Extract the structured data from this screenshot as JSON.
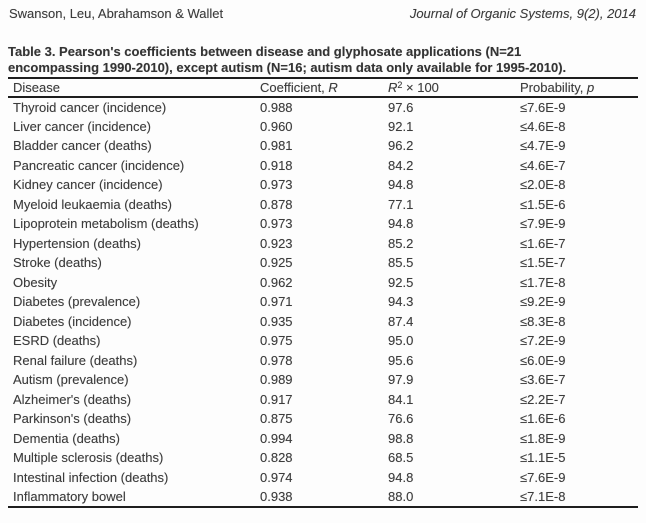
{
  "page": {
    "running_head_left": "Swanson, Leu, Abrahamson & Wallet",
    "running_head_right": "Journal of Organic Systems, 9(2), 2014"
  },
  "table": {
    "caption_line1": "Table 3. Pearson's coefficients between disease and glyphosate applications (N=21",
    "caption_line2": "encompassing 1990-2010), except autism (N=16; autism data only available for 1995-2010).",
    "columns": {
      "disease": "Disease",
      "coefficient_prefix": "Coefficient, ",
      "coefficient_symbol": "R",
      "r_squared_symbol": "R",
      "r_squared_sup": "2",
      "r_squared_suffix": " × 100",
      "probability_prefix": "Probability, ",
      "probability_symbol": "p"
    },
    "rows": [
      {
        "disease": "Thyroid cancer (incidence)",
        "coefficient": "0.988",
        "r2x100": "97.6",
        "probability": "≤7.6E-9"
      },
      {
        "disease": "Liver cancer (incidence)",
        "coefficient": "0.960",
        "r2x100": "92.1",
        "probability": "≤4.6E-8"
      },
      {
        "disease": "Bladder cancer (deaths)",
        "coefficient": "0.981",
        "r2x100": "96.2",
        "probability": "≤4.7E-9"
      },
      {
        "disease": "Pancreatic cancer (incidence)",
        "coefficient": "0.918",
        "r2x100": "84.2",
        "probability": "≤4.6E-7"
      },
      {
        "disease": "Kidney cancer (incidence)",
        "coefficient": "0.973",
        "r2x100": "94.8",
        "probability": "≤2.0E-8"
      },
      {
        "disease": "Myeloid leukaemia (deaths)",
        "coefficient": "0.878",
        "r2x100": "77.1",
        "probability": "≤1.5E-6"
      },
      {
        "disease": "Lipoprotein metabolism (deaths)",
        "coefficient": "0.973",
        "r2x100": "94.8",
        "probability": "≤7.9E-9"
      },
      {
        "disease": "Hypertension (deaths)",
        "coefficient": "0.923",
        "r2x100": "85.2",
        "probability": "≤1.6E-7"
      },
      {
        "disease": "Stroke (deaths)",
        "coefficient": "0.925",
        "r2x100": "85.5",
        "probability": "≤1.5E-7"
      },
      {
        "disease": "Obesity",
        "coefficient": "0.962",
        "r2x100": "92.5",
        "probability": "≤1.7E-8"
      },
      {
        "disease": "Diabetes (prevalence)",
        "coefficient": "0.971",
        "r2x100": "94.3",
        "probability": "≤9.2E-9"
      },
      {
        "disease": "Diabetes (incidence)",
        "coefficient": "0.935",
        "r2x100": "87.4",
        "probability": "≤8.3E-8"
      },
      {
        "disease": "ESRD (deaths)",
        "coefficient": "0.975",
        "r2x100": "95.0",
        "probability": "≤7.2E-9"
      },
      {
        "disease": "Renal failure (deaths)",
        "coefficient": "0.978",
        "r2x100": "95.6",
        "probability": "≤6.0E-9"
      },
      {
        "disease": "Autism (prevalence)",
        "coefficient": "0.989",
        "r2x100": "97.9",
        "probability": "≤3.6E-7"
      },
      {
        "disease": "Alzheimer's (deaths)",
        "coefficient": "0.917",
        "r2x100": "84.1",
        "probability": "≤2.2E-7"
      },
      {
        "disease": "Parkinson's (deaths)",
        "coefficient": "0.875",
        "r2x100": "76.6",
        "probability": "≤1.6E-6"
      },
      {
        "disease": "Dementia (deaths)",
        "coefficient": "0.994",
        "r2x100": "98.8",
        "probability": "≤1.8E-9"
      },
      {
        "disease": "Multiple sclerosis (deaths)",
        "coefficient": "0.828",
        "r2x100": "68.5",
        "probability": "≤1.1E-5"
      },
      {
        "disease": "Intestinal infection (deaths)",
        "coefficient": "0.974",
        "r2x100": "94.8",
        "probability": "≤7.6E-9"
      },
      {
        "disease": "Inflammatory bowel",
        "coefficient": "0.938",
        "r2x100": "88.0",
        "probability": "≤7.1E-8"
      }
    ]
  }
}
